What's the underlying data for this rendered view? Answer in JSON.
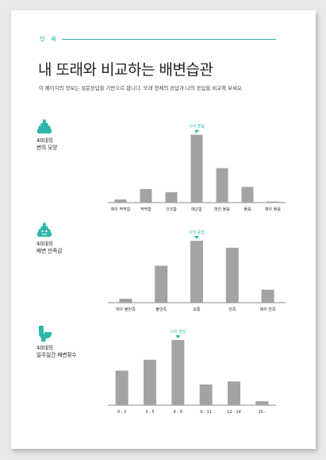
{
  "header": {
    "section_tag": "부 록",
    "title": "내 또래와 비교하는 배변습관",
    "description": "이 페이지의 정보는 설문응답을 기반으로 합니다. 또래 전체의 응답과 나의 응답을 비교해 보세요."
  },
  "colors": {
    "accent": "#2bb7a8",
    "bar": "#a3a3a3",
    "axis": "#666666"
  },
  "sections": [
    {
      "label": "40대의\n변의 모양",
      "icon": "poop-icon"
    },
    {
      "label": "40대의\n배변 만족감",
      "icon": "poop-happy-icon"
    },
    {
      "label": "40대의\n일주일간 배변횟수",
      "icon": "toilet-icon"
    }
  ],
  "chart_data": [
    {
      "type": "bar",
      "categories": [
        "매우 딱딱함",
        "딱딱함",
        "건조함",
        "매끈함",
        "퍼진 묽음",
        "묽음",
        "매우 묽음"
      ],
      "values": [
        3,
        13,
        10,
        65,
        33,
        15,
        1
      ],
      "ylim": [
        0,
        70
      ],
      "highlight_index": 3,
      "highlight_label": "나의 응답"
    },
    {
      "type": "bar",
      "categories": [
        "매우 불만족",
        "불만족",
        "보통",
        "만족",
        "매우 만족"
      ],
      "values": [
        4,
        37,
        62,
        55,
        13
      ],
      "ylim": [
        0,
        70
      ],
      "highlight_index": 2,
      "highlight_label": "나의 응답"
    },
    {
      "type": "bar",
      "categories": [
        "0 - 2",
        "3 - 5",
        "6 - 8",
        "9 - 11",
        "12 - 14",
        "15 -"
      ],
      "values": [
        35,
        46,
        66,
        21,
        24,
        4
      ],
      "ylim": [
        0,
        70
      ],
      "highlight_index": 2,
      "highlight_label": "나의 응답"
    }
  ]
}
